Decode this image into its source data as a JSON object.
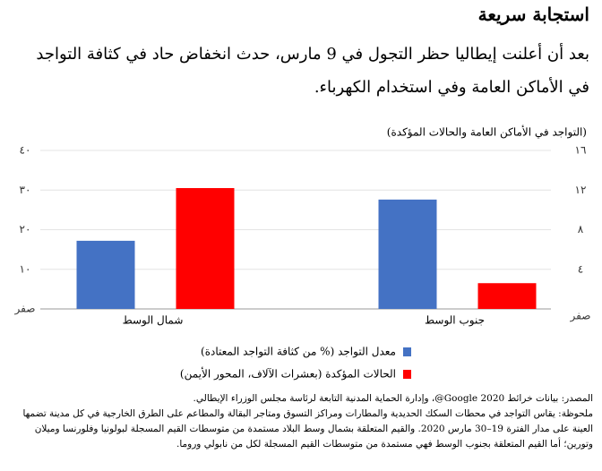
{
  "chart_data": {
    "type": "bar",
    "title": "استجابة سريعة",
    "subtitle": "بعد أن أعلنت إيطاليا حظر التجول في 9 مارس، حدث انخفاض حاد في كثافة التواجد في الأماكن العامة وفي استخدام الكهرباء.",
    "axis_title": "(التواجد في الأماكن العامة والحالات المؤكدة)",
    "categories": [
      "شمال الوسط",
      "جنوب الوسط"
    ],
    "series": [
      {
        "name": "معدل التواجد (% من كثافة التواجد المعتادة)",
        "color": "#4472c4",
        "values": [
          17.2,
          27.6
        ]
      },
      {
        "name": "الحالات المؤكدة (بعشرات الآلاف، المحور الأيمن)",
        "color": "#ff0000",
        "values": [
          12.2,
          2.6
        ],
        "axis": "y2"
      }
    ],
    "ylim": [
      0,
      40
    ],
    "yticks": [
      {
        "value": 0,
        "label": "صفر"
      },
      {
        "value": 10,
        "label": "١٠"
      },
      {
        "value": 20,
        "label": "٢٠"
      },
      {
        "value": 30,
        "label": "٣٠"
      },
      {
        "value": 40,
        "label": "٤٠"
      }
    ],
    "y2lim": [
      0,
      16
    ],
    "y2ticks": [
      {
        "value": 0,
        "label": "صفر"
      },
      {
        "value": 4,
        "label": "٤"
      },
      {
        "value": 8,
        "label": "٨"
      },
      {
        "value": 12,
        "label": "١٢"
      },
      {
        "value": 16,
        "label": "١٦"
      }
    ],
    "grid": true,
    "source": "المصدر: بيانات خرائط Google 2020@، وإدارة الحماية المدنية التابعة لرئاسة مجلس الوزراء الإيطالي.",
    "note": "ملحوظة: يقاس التواجد في محطات السكك الحديدية والمطارات ومراكز التسوق ومتاجر البقالة والمطاعم على الطرق الخارجية في كل مدينة تضمها العينة على مدار الفترة 19–30 مارس 2020. والقيم المتعلقة بشمال وسط البلاد مستمدة من متوسطات القيم المسجلة لبولونيا وفلورنسا وميلان وتورين؛ أما القيم المتعلقة بجنوب الوسط فهي مستمدة من متوسطات القيم المسجلة لكل من نابولي وروما."
  }
}
